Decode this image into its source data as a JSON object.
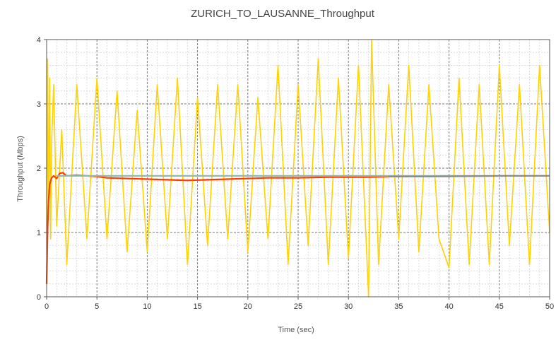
{
  "chart_data": {
    "type": "line",
    "title": "ZURICH_TO_LAUSANNE_Throughput",
    "xlabel": "Time (sec)",
    "ylabel": "Throughput (Mbps)",
    "xlim": [
      0,
      50
    ],
    "ylim": [
      0,
      4
    ],
    "x_ticks": [
      "0",
      "5",
      "10",
      "15",
      "20",
      "25",
      "30",
      "35",
      "40",
      "45",
      "50"
    ],
    "y_ticks": [
      "0",
      "1",
      "2",
      "3",
      "4"
    ],
    "grid": true,
    "legend": "none",
    "series": [
      {
        "color": "#FFD200",
        "style": "instantaneous, rapid oscillation between ~0.5 and ~4.0 Mbps",
        "x": [
          0,
          0.1,
          0.2,
          0.3,
          0.4,
          0.5,
          0.7,
          1,
          1.5,
          2,
          3,
          4,
          5,
          6,
          7,
          8,
          9,
          10,
          11,
          12,
          13,
          14,
          15,
          16,
          17,
          18,
          19,
          20,
          21,
          22,
          23,
          24,
          25,
          26,
          27,
          28,
          29,
          30,
          31,
          32,
          32.3,
          33,
          34,
          35,
          36,
          37,
          38,
          39,
          40,
          41,
          42,
          43,
          44,
          45,
          46,
          47,
          48,
          49,
          50
        ],
        "values": [
          0.2,
          3.7,
          1.2,
          3.4,
          0.9,
          2.4,
          3.3,
          1.1,
          2.6,
          0.5,
          3.3,
          0.9,
          3.4,
          0.9,
          3.2,
          0.7,
          2.9,
          0.7,
          3.3,
          0.9,
          3.4,
          0.5,
          3.1,
          0.8,
          3.3,
          0.9,
          3.3,
          0.7,
          3.1,
          0.9,
          3.6,
          0.5,
          3.3,
          0.8,
          3.7,
          0.5,
          3.4,
          0.6,
          3.6,
          0.0,
          4.0,
          0.5,
          3.3,
          0.9,
          3.6,
          0.7,
          3.3,
          0.9,
          0.45,
          3.4,
          0.5,
          3.3,
          0.5,
          3.6,
          0.8,
          3.3,
          0.5,
          3.6,
          1.0
        ]
      },
      {
        "color": "#FF3C00",
        "style": "running average",
        "x": [
          0,
          0.1,
          0.2,
          0.3,
          0.5,
          0.7,
          1,
          1.3,
          1.6,
          2,
          3,
          4,
          5,
          6,
          8,
          10,
          12,
          14,
          16,
          18,
          20,
          22,
          25,
          28,
          30,
          32,
          34,
          36
        ],
        "values": [
          0.2,
          1.05,
          1.5,
          1.75,
          1.85,
          1.88,
          1.84,
          1.92,
          1.93,
          1.88,
          1.89,
          1.88,
          1.87,
          1.85,
          1.84,
          1.83,
          1.82,
          1.81,
          1.82,
          1.83,
          1.84,
          1.85,
          1.85,
          1.86,
          1.86,
          1.86,
          1.87,
          1.87
        ]
      },
      {
        "color": "#8FB8B0",
        "style": "overall average",
        "x": [
          1,
          50
        ],
        "values": [
          1.88,
          1.88
        ]
      },
      {
        "color": "#8A8A8A",
        "style": "running average (converged)",
        "x": [
          34,
          38,
          42,
          46,
          50
        ],
        "values": [
          1.87,
          1.87,
          1.875,
          1.88,
          1.88
        ]
      }
    ]
  }
}
